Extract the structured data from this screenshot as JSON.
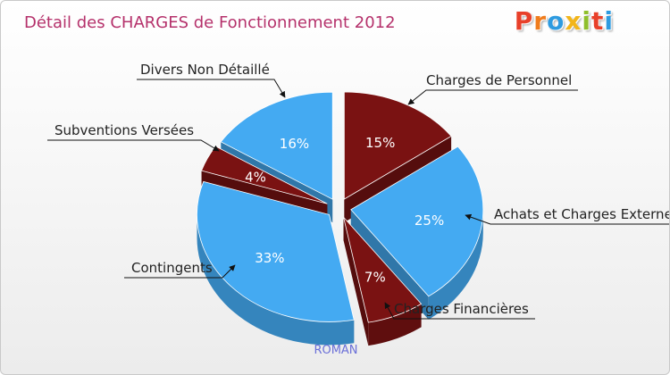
{
  "chart_data": {
    "type": "pie",
    "title": "Détail des CHARGES de Fonctionnement 2012",
    "subtitle": "ROMAN",
    "slices": [
      {
        "label": "Charges de Personnel",
        "value": 15,
        "display": "15%",
        "color": "#7a1212"
      },
      {
        "label": "Achats et Charges Externes",
        "value": 25,
        "display": "25%",
        "color": "#44aaf2"
      },
      {
        "label": "Charges Financières",
        "value": 7,
        "display": "7%",
        "color": "#7a1212"
      },
      {
        "label": "Contingents",
        "value": 33,
        "display": "33%",
        "color": "#44aaf2"
      },
      {
        "label": "Subventions Versées",
        "value": 4,
        "display": "4%",
        "color": "#7a1212"
      },
      {
        "label": "Divers Non Détaillé",
        "value": 16,
        "display": "16%",
        "color": "#44aaf2"
      }
    ]
  },
  "logo": {
    "letters": [
      "P",
      "r",
      "o",
      "x",
      "i",
      "t",
      "i"
    ],
    "colors": [
      "#e8402a",
      "#f07c1c",
      "#2e9be0",
      "#f2b51a",
      "#8fbf2c",
      "#e8402a",
      "#2e9be0"
    ]
  }
}
